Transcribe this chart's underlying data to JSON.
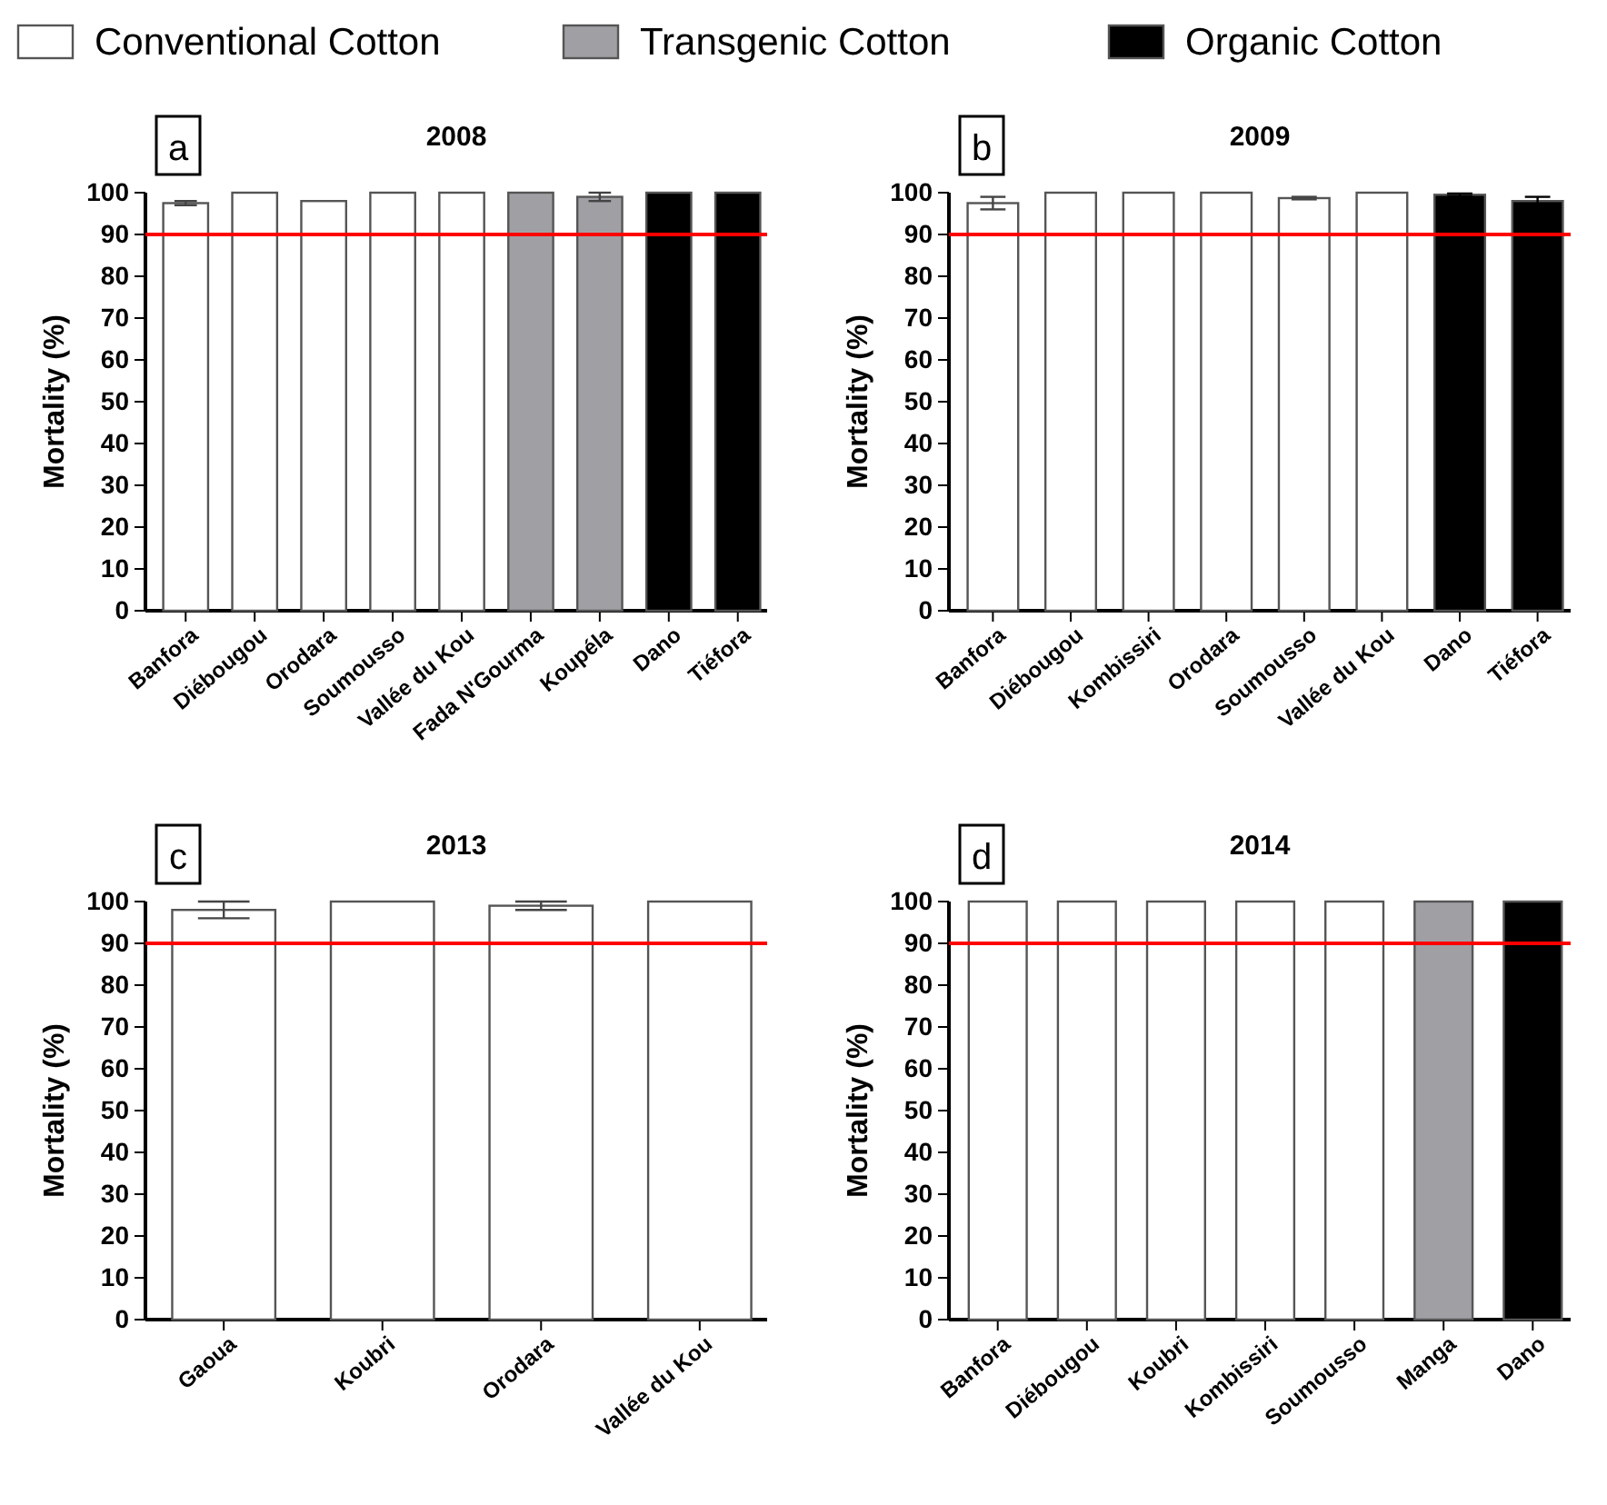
{
  "chart_data": [
    {
      "type": "bar",
      "title": "2008",
      "ylabel": "Mortality (%)",
      "annotations": [
        "a"
      ],
      "legend": "top",
      "categories": [
        "Banfora",
        "Diébougou",
        "Orodara",
        "Soumousso",
        "Vallée du Kou",
        "Fada N'Gourma",
        "Koupéla",
        "Dano",
        "Tiéfora"
      ],
      "series": [
        {
          "name": "Conventional Cotton",
          "color": "#ffffff",
          "values": [
            97.5,
            100,
            98,
            100,
            100,
            null,
            null,
            null,
            null
          ],
          "errors": [
            0.5,
            null,
            null,
            null,
            null,
            null,
            null,
            null,
            null
          ]
        },
        {
          "name": "Transgenic Cotton",
          "color": "#a0a0a4",
          "values": [
            null,
            null,
            null,
            null,
            null,
            100,
            99,
            null,
            null
          ],
          "errors": [
            null,
            null,
            null,
            null,
            null,
            null,
            1,
            null,
            null
          ]
        },
        {
          "name": "Organic Cotton",
          "color": "#000000",
          "values": [
            null,
            null,
            null,
            null,
            null,
            null,
            null,
            100,
            100
          ]
        }
      ],
      "ylim": [
        0,
        100
      ],
      "yticks": [
        0,
        10,
        20,
        30,
        40,
        50,
        60,
        70,
        80,
        90,
        100
      ],
      "ref_lines": [
        {
          "axis": "y",
          "value": 90,
          "color": "#ff0000"
        }
      ]
    },
    {
      "type": "bar",
      "title": "2009",
      "ylabel": "Mortality (%)",
      "annotations": [
        "b"
      ],
      "categories": [
        "Banfora",
        "Diébougou",
        "Kombissiri",
        "Orodara",
        "Soumousso",
        "Vallée du Kou",
        "Dano",
        "Tiéfora"
      ],
      "series": [
        {
          "color": "#ffffff",
          "values": [
            97.5,
            100,
            100,
            100,
            98.7,
            100,
            null,
            null
          ],
          "errors": [
            1.5,
            null,
            null,
            null,
            0.3,
            null,
            null,
            null
          ]
        },
        {
          "color": "#000000",
          "values": [
            null,
            null,
            null,
            null,
            null,
            null,
            99.5,
            98
          ],
          "errors": [
            null,
            null,
            null,
            null,
            null,
            null,
            0.3,
            1
          ]
        }
      ],
      "ylim": [
        0,
        100
      ],
      "yticks": [
        0,
        10,
        20,
        30,
        40,
        50,
        60,
        70,
        80,
        90,
        100
      ],
      "ref_lines": [
        {
          "axis": "y",
          "value": 90,
          "color": "#ff0000"
        }
      ]
    },
    {
      "type": "bar",
      "title": "2013",
      "ylabel": "Mortality (%)",
      "annotations": [
        "c"
      ],
      "categories": [
        "Gaoua",
        "Koubri",
        "Orodara",
        "Vallée du Kou"
      ],
      "series": [
        {
          "color": "#ffffff",
          "values": [
            98,
            100,
            99,
            100
          ],
          "errors": [
            2,
            null,
            1,
            null
          ]
        }
      ],
      "ylim": [
        0,
        100
      ],
      "yticks": [
        0,
        10,
        20,
        30,
        40,
        50,
        60,
        70,
        80,
        90,
        100
      ],
      "ref_lines": [
        {
          "axis": "y",
          "value": 90,
          "color": "#ff0000"
        }
      ]
    },
    {
      "type": "bar",
      "title": "2014",
      "ylabel": "Mortality (%)",
      "annotations": [
        "d"
      ],
      "categories": [
        "Banfora",
        "Diébougou",
        "Koubri",
        "Kombissiri",
        "Soumousso",
        "Manga",
        "Dano"
      ],
      "series": [
        {
          "color": "#ffffff",
          "values": [
            100,
            100,
            100,
            100,
            100,
            null,
            null
          ]
        },
        {
          "color": "#a0a0a4",
          "values": [
            null,
            null,
            null,
            null,
            null,
            100,
            null
          ]
        },
        {
          "color": "#000000",
          "values": [
            null,
            null,
            null,
            null,
            null,
            null,
            100
          ]
        }
      ],
      "ylim": [
        0,
        100
      ],
      "yticks": [
        0,
        10,
        20,
        30,
        40,
        50,
        60,
        70,
        80,
        90,
        100
      ],
      "ref_lines": [
        {
          "axis": "y",
          "value": 90,
          "color": "#ff0000"
        }
      ]
    }
  ]
}
